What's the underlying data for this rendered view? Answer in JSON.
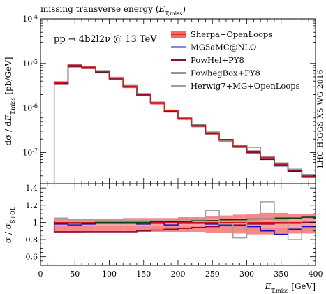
{
  "title": "missing transverse energy (E_T,miss)",
  "process": "pp → 4b2l2ν @ 13 TeV",
  "side_label": "LHC HIGGS XS WG 2016",
  "colors": {
    "band": "#f26b6b",
    "band_light": "#f9a5a5",
    "mg5": "#1010c8",
    "powhel": "#8a0d34",
    "powheg": "#0f3d12",
    "herwig": "#a0a0a0"
  },
  "chart_data": [
    {
      "type": "line",
      "style": "histogram",
      "ylabel": "dσ / dE_T,miss [pb/GeV]",
      "yscale": "log",
      "xlim": [
        0,
        400
      ],
      "ylim": [
        2e-08,
        0.0001
      ],
      "yticklabels": [
        "10^-7",
        "10^-6",
        "10^-5",
        "10^-4"
      ],
      "bin_edges": [
        20,
        40,
        60,
        80,
        100,
        120,
        140,
        160,
        180,
        200,
        220,
        240,
        260,
        280,
        300,
        320,
        340,
        360,
        380,
        400
      ],
      "series": [
        {
          "name": "Sherpa+OpenLoops",
          "color": "#f26b6b",
          "kind": "band",
          "values": [
            3.7e-06,
            9.2e-06,
            8.3e-06,
            6.6e-06,
            4.7e-06,
            3.1e-06,
            2.05e-06,
            1.32e-06,
            8.7e-07,
            5.9e-07,
            4.05e-07,
            2.75e-07,
            1.9e-07,
            1.4e-07,
            1.05e-07,
            7.8e-08,
            5.5e-08,
            4.05e-08,
            3e-08
          ]
        },
        {
          "name": "MG5aMC@NLO",
          "color": "#1010c8",
          "kind": "line",
          "values": [
            3.6e-06,
            8.8e-06,
            8.1e-06,
            6.5e-06,
            4.65e-06,
            3.05e-06,
            2e-06,
            1.3e-06,
            8.4e-07,
            5.85e-07,
            4e-07,
            2.7e-07,
            1.85e-07,
            1.35e-07,
            1e-07,
            7e-08,
            5e-08,
            3.8e-08,
            2.8e-08
          ]
        },
        {
          "name": "PowHel+PY8",
          "color": "#8a0d34",
          "kind": "line",
          "values": [
            3.4e-06,
            8.4e-06,
            7.8e-06,
            6.3e-06,
            4.5e-06,
            2.95e-06,
            1.95e-06,
            1.28e-06,
            8.3e-07,
            5.7e-07,
            3.9e-07,
            2.65e-07,
            1.85e-07,
            1.33e-07,
            1e-07,
            7.3e-08,
            5.3e-08,
            3.9e-08,
            2.9e-08
          ]
        },
        {
          "name": "PowhegBox+PY8",
          "color": "#0f3d12",
          "kind": "line",
          "values": [
            3.6e-06,
            8.9e-06,
            8.15e-06,
            6.55e-06,
            4.7e-06,
            3.1e-06,
            2.05e-06,
            1.33e-06,
            8.7e-07,
            5.95e-07,
            4.1e-07,
            2.8e-07,
            1.95e-07,
            1.42e-07,
            1.07e-07,
            8e-08,
            5.8e-08,
            4.2e-08,
            3.2e-08
          ]
        },
        {
          "name": "Herwig7+MG+OpenLoops",
          "color": "#a0a0a0",
          "kind": "line",
          "values": [
            3.9e-06,
            9.6e-06,
            8.6e-06,
            6.9e-06,
            4.9e-06,
            3.2e-06,
            2.1e-06,
            1.35e-06,
            8.9e-07,
            6.1e-07,
            4.3e-07,
            2.9e-07,
            1.85e-07,
            1.45e-07,
            1.3e-07,
            8e-08,
            5.6e-08,
            4.2e-08,
            3.2e-08
          ]
        }
      ]
    },
    {
      "type": "line",
      "style": "histogram-ratio",
      "xlabel": "E_T,miss [GeV]",
      "ylabel": "σ / σ_S+OL",
      "xlim": [
        0,
        400
      ],
      "ylim": [
        0.5,
        1.45
      ],
      "xticklabels": [
        "0",
        "50",
        "100",
        "150",
        "200",
        "250",
        "300",
        "350",
        "400"
      ],
      "yticklabels": [
        "0.6",
        "0.8",
        "1",
        "1.2",
        "1.4"
      ],
      "bin_edges": [
        20,
        40,
        60,
        80,
        100,
        120,
        140,
        160,
        180,
        200,
        220,
        240,
        260,
        280,
        300,
        320,
        340,
        360,
        380,
        400
      ],
      "band": {
        "name": "Sherpa+OpenLoops",
        "lower": [
          0.88,
          0.88,
          0.89,
          0.89,
          0.89,
          0.89,
          0.89,
          0.89,
          0.89,
          0.89,
          0.89,
          0.88,
          0.88,
          0.87,
          0.86,
          0.86,
          0.86,
          0.87,
          0.87
        ],
        "upper": [
          1.04,
          1.04,
          1.04,
          1.04,
          1.04,
          1.05,
          1.05,
          1.05,
          1.05,
          1.06,
          1.06,
          1.07,
          1.08,
          1.09,
          1.1,
          1.11,
          1.11,
          1.1,
          1.1
        ],
        "inner_lower": [
          0.96,
          0.96,
          0.96,
          0.96,
          0.96,
          0.96,
          0.96,
          0.96,
          0.96,
          0.96,
          0.96,
          0.95,
          0.95,
          0.95,
          0.94,
          0.94,
          0.94,
          0.94,
          0.94
        ],
        "inner_upper": [
          1.02,
          1.02,
          1.02,
          1.02,
          1.02,
          1.03,
          1.03,
          1.03,
          1.03,
          1.03,
          1.03,
          1.04,
          1.04,
          1.05,
          1.05,
          1.05,
          1.05,
          1.05,
          1.05
        ]
      },
      "series": [
        {
          "name": "MG5aMC@NLO",
          "color": "#1010c8",
          "values": [
            0.98,
            0.97,
            0.98,
            0.99,
            0.99,
            0.99,
            0.98,
            0.99,
            0.97,
            0.99,
            0.99,
            0.98,
            0.97,
            0.96,
            0.95,
            0.9,
            0.86,
            0.92,
            0.95
          ]
        },
        {
          "name": "PowHel+PY8",
          "color": "#8a0d34",
          "values": [
            0.89,
            0.89,
            0.89,
            0.89,
            0.89,
            0.89,
            0.9,
            0.91,
            0.92,
            0.93,
            0.94,
            0.95,
            0.96,
            0.97,
            0.98,
            0.98,
            0.99,
            0.99,
            1.0
          ]
        },
        {
          "name": "PowhegBox+PY8",
          "color": "#0f3d12",
          "values": [
            0.99,
            0.99,
            0.99,
            1.0,
            1.0,
            1.0,
            1.0,
            1.01,
            1.01,
            1.01,
            1.02,
            1.02,
            1.03,
            1.03,
            1.04,
            1.04,
            1.05,
            1.05,
            1.06
          ]
        },
        {
          "name": "Herwig7+MG+OpenLoops",
          "color": "#a0a0a0",
          "values": [
            1.05,
            1.03,
            1.03,
            1.03,
            1.03,
            1.02,
            1.02,
            1.02,
            1.02,
            1.03,
            1.03,
            1.14,
            0.98,
            0.82,
            1.02,
            1.24,
            1.03,
            0.8,
            1.04
          ]
        }
      ]
    }
  ]
}
